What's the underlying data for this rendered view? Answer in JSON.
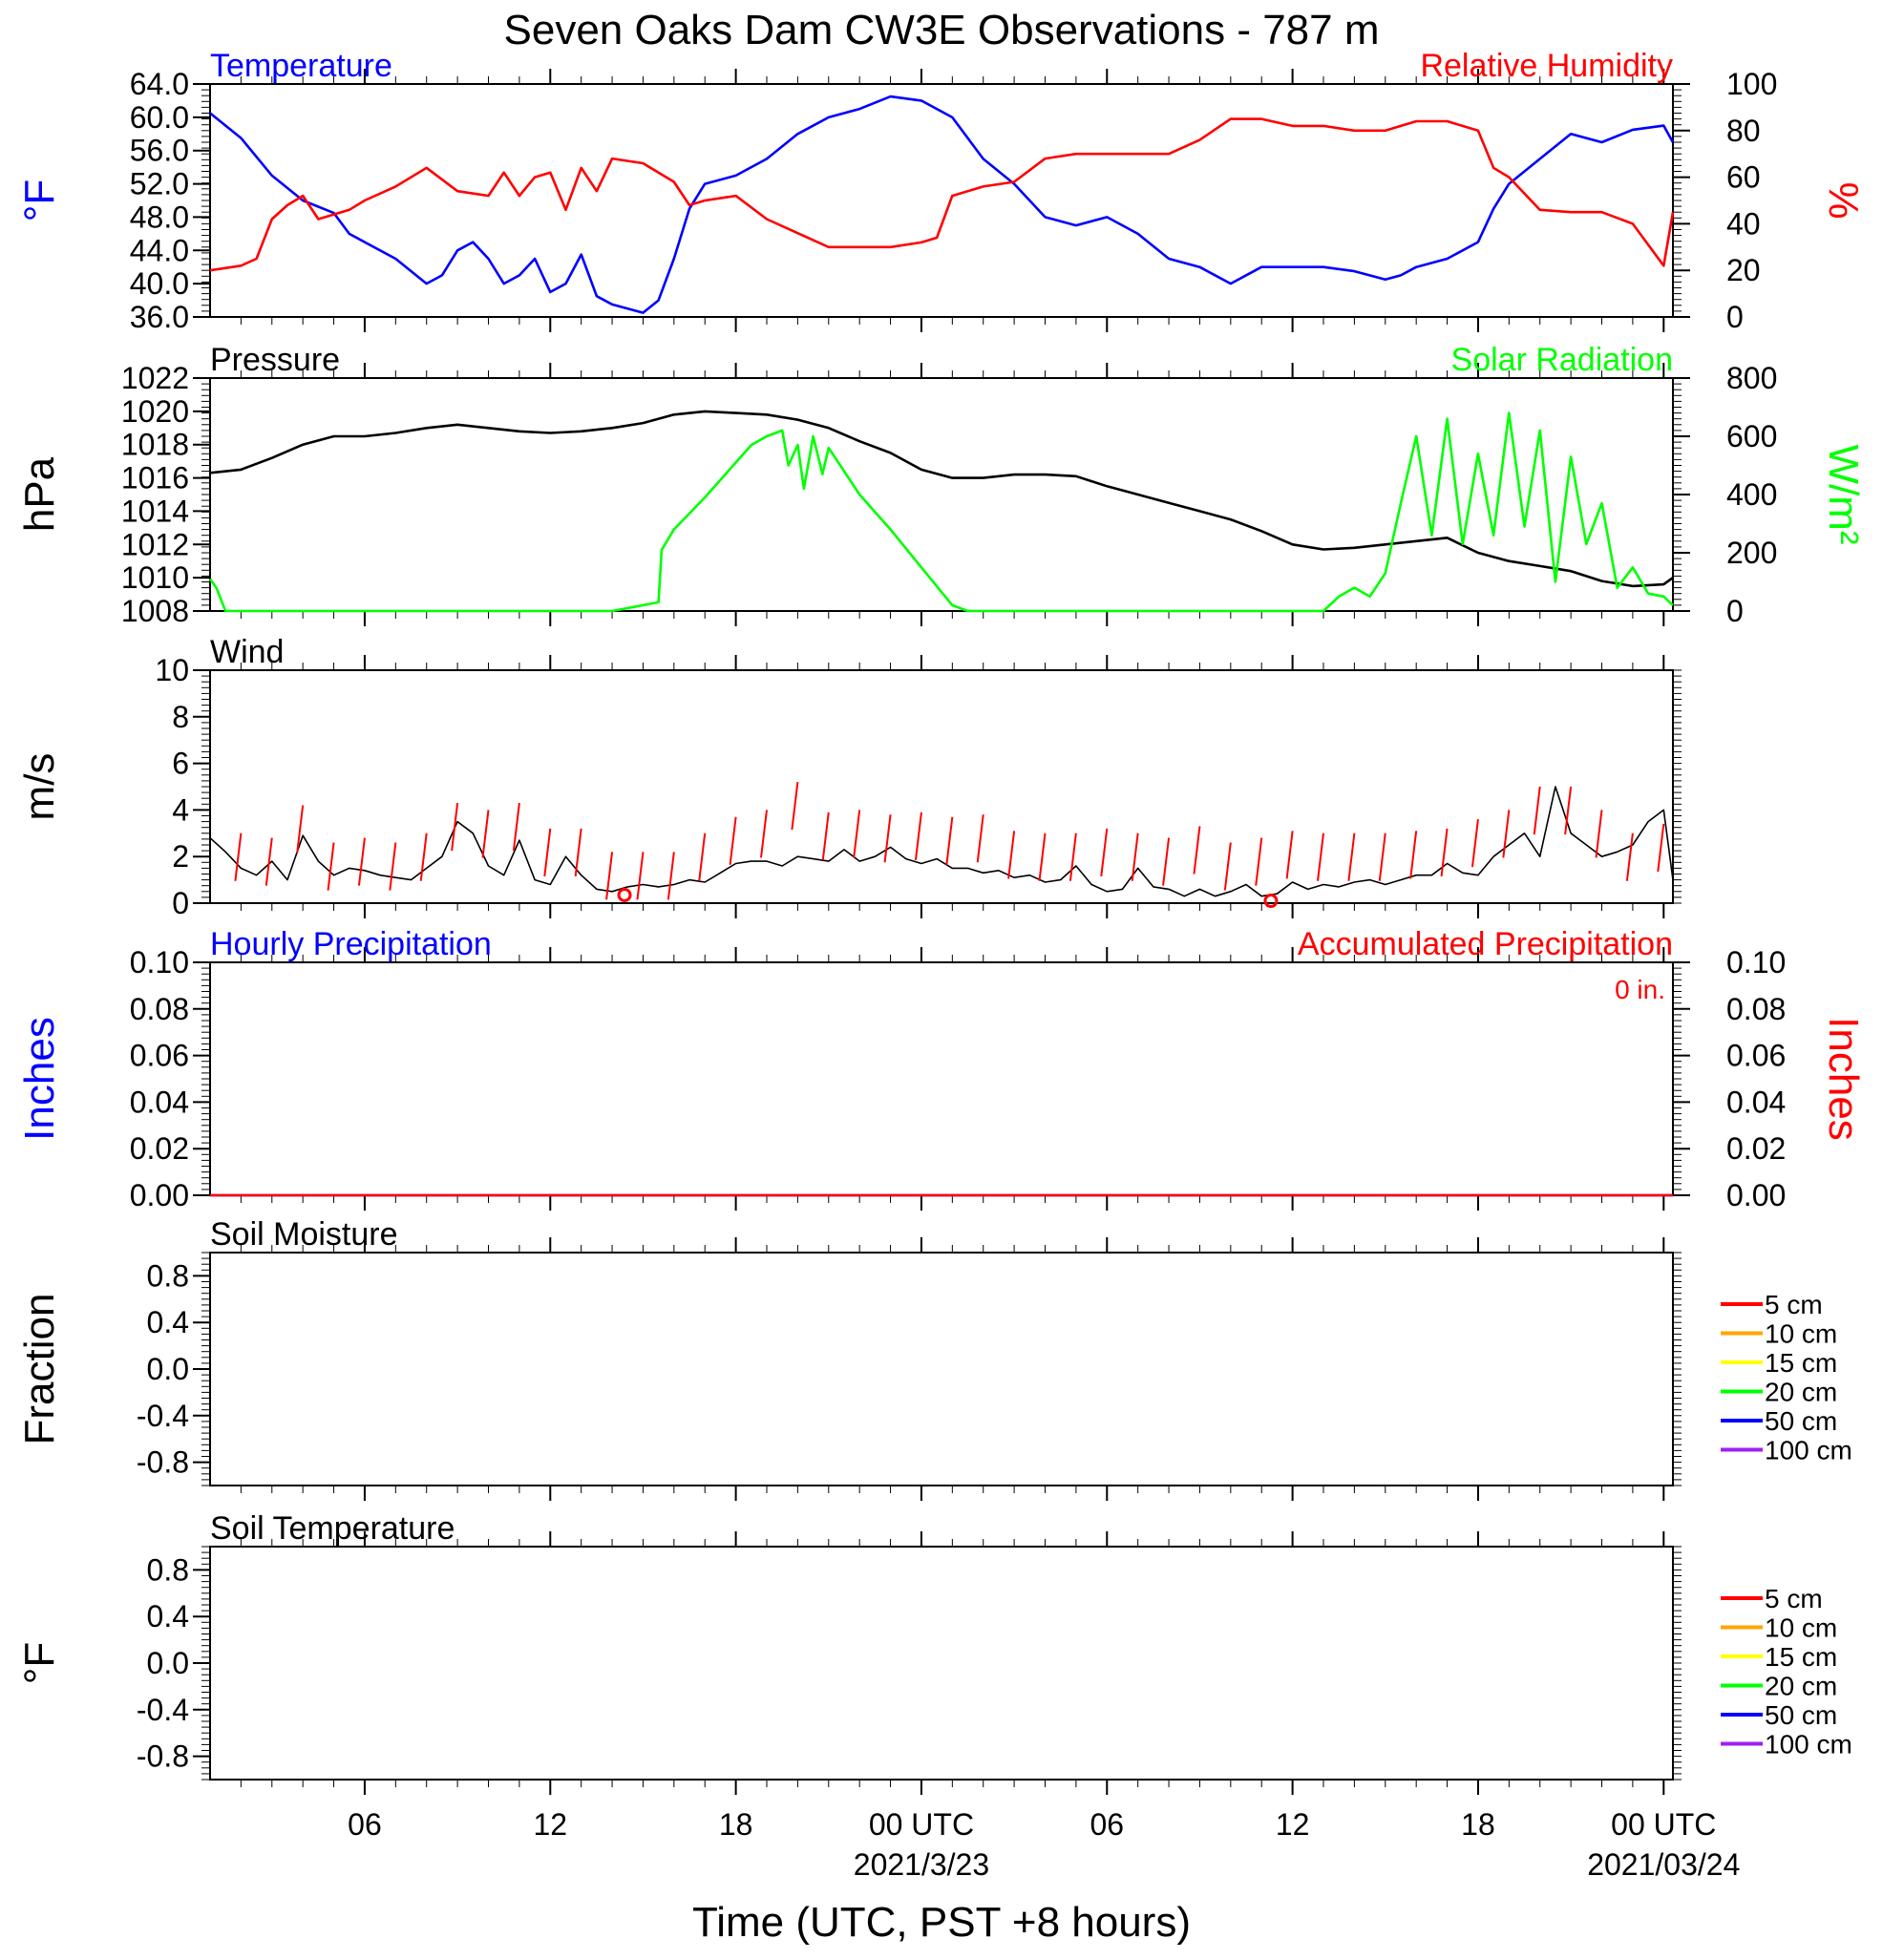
{
  "title": "Seven Oaks Dam CW3E Observations - 787 m",
  "xlabel": "Time (UTC, PST +8 hours)",
  "x_ticks": [
    {
      "hour": 6,
      "label": "06"
    },
    {
      "hour": 12,
      "label": "12"
    },
    {
      "hour": 18,
      "label": "18"
    },
    {
      "hour": 24,
      "label": "00 UTC",
      "date": "2021/3/23"
    },
    {
      "hour": 30,
      "label": "06"
    },
    {
      "hour": 36,
      "label": "12"
    },
    {
      "hour": 42,
      "label": "18"
    },
    {
      "hour": 48,
      "label": "00 UTC",
      "date": "2021/03/24"
    }
  ],
  "x_range_hours": [
    1,
    48.3
  ],
  "colors": {
    "temperature": "#0000ff",
    "humidity": "#ff0000",
    "pressure": "#000000",
    "solar": "#00ff00",
    "wind": "#000000",
    "gust": "#ff0000"
  },
  "panels": {
    "temp_rh": {
      "left_title": "Temperature",
      "right_title": "Relative Humidity",
      "left_unit": "°F",
      "right_unit": "%",
      "left_ticks": [
        "64.0",
        "60.0",
        "56.0",
        "52.0",
        "48.0",
        "44.0",
        "40.0",
        "36.0"
      ],
      "right_ticks": [
        "100",
        "80",
        "60",
        "40",
        "20",
        "0"
      ]
    },
    "pressure_solar": {
      "left_title": "Pressure",
      "right_title": "Solar Radiation",
      "left_unit": "hPa",
      "right_unit": "W/m²",
      "left_ticks": [
        "1022",
        "1020",
        "1018",
        "1016",
        "1014",
        "1012",
        "1010",
        "1008"
      ],
      "right_ticks": [
        "800",
        "600",
        "400",
        "200",
        "0"
      ]
    },
    "wind": {
      "left_title": "Wind",
      "left_unit": "m/s",
      "left_ticks": [
        "10",
        "8",
        "6",
        "4",
        "2",
        "0"
      ]
    },
    "precip": {
      "left_title": "Hourly Precipitation",
      "right_title": "Accumulated Precipitation",
      "left_unit": "Inches",
      "right_unit": "Inches",
      "total_label": "0 in.",
      "left_ticks": [
        "0.10",
        "0.08",
        "0.06",
        "0.04",
        "0.02",
        "0.00"
      ],
      "right_ticks": [
        "0.10",
        "0.08",
        "0.06",
        "0.04",
        "0.02",
        "0.00"
      ]
    },
    "soil_moisture": {
      "left_title": "Soil Moisture",
      "left_unit": "Fraction",
      "left_ticks": [
        "0.8",
        "0.4",
        "0.0",
        "-0.4",
        "-0.8"
      ]
    },
    "soil_temp": {
      "left_title": "Soil Temperature",
      "left_unit": "°F",
      "left_ticks": [
        "0.8",
        "0.4",
        "0.0",
        "-0.4",
        "-0.8"
      ]
    }
  },
  "soil_legend": [
    {
      "label": "5 cm",
      "color": "#ff0000"
    },
    {
      "label": "10 cm",
      "color": "#ffa500"
    },
    {
      "label": "15 cm",
      "color": "#ffff00"
    },
    {
      "label": "20 cm",
      "color": "#00ff00"
    },
    {
      "label": "50 cm",
      "color": "#0000ff"
    },
    {
      "label": "100 cm",
      "color": "#a020f0"
    }
  ],
  "chart_data": [
    {
      "type": "line",
      "ylim": [
        36,
        64
      ],
      "y2lim": [
        0,
        100
      ],
      "series": [
        {
          "name": "Temperature",
          "axis": "left",
          "x": [
            1,
            2,
            3,
            4,
            5,
            5.5,
            6,
            7,
            8,
            8.5,
            9,
            9.5,
            10,
            10.5,
            11,
            11.5,
            12,
            12.5,
            13,
            13.5,
            14,
            14.5,
            15,
            15.5,
            16,
            16.5,
            17,
            18,
            19,
            20,
            21,
            22,
            23,
            24,
            25,
            26,
            27,
            28,
            29,
            30,
            31,
            32,
            33,
            34,
            35,
            36,
            37,
            38,
            39,
            39.5,
            40,
            41,
            42,
            42.5,
            43,
            44,
            45,
            46,
            47,
            48,
            48.3
          ],
          "values": [
            60.5,
            57.5,
            53,
            50,
            48.5,
            46,
            45,
            43,
            40,
            41,
            44,
            45,
            43,
            40,
            41,
            43,
            39,
            40,
            43.5,
            38.5,
            37.5,
            37,
            36.5,
            38,
            43,
            49,
            52,
            53,
            55,
            58,
            60,
            61,
            62.5,
            62,
            60,
            55,
            52,
            48,
            47,
            48,
            46,
            43,
            42,
            40,
            42,
            42,
            42,
            41.5,
            40.5,
            41,
            42,
            43,
            45,
            49,
            52,
            55,
            58,
            57,
            58.5,
            59,
            57
          ]
        },
        {
          "name": "Relative Humidity",
          "axis": "right",
          "x": [
            1,
            2,
            2.5,
            3,
            3.5,
            4,
            4.5,
            5,
            5.5,
            6,
            7,
            8,
            9,
            10,
            10.5,
            11,
            11.5,
            12,
            12.5,
            13,
            13.5,
            14,
            15,
            16,
            16.5,
            17,
            18,
            19,
            20,
            21,
            22,
            23,
            24,
            24.5,
            25,
            26,
            27,
            28,
            29,
            30,
            31,
            32,
            33,
            34,
            35,
            36,
            37,
            38,
            39,
            40,
            41,
            42,
            42.5,
            43,
            44,
            45,
            46,
            47,
            48,
            48.3
          ],
          "values": [
            20,
            22,
            25,
            42,
            48,
            52,
            42,
            44,
            46,
            50,
            56,
            64,
            54,
            52,
            62,
            52,
            60,
            62,
            46,
            64,
            54,
            68,
            66,
            58,
            48,
            50,
            52,
            42,
            36,
            30,
            30,
            30,
            32,
            34,
            52,
            56,
            58,
            68,
            70,
            70,
            70,
            70,
            76,
            85,
            85,
            82,
            82,
            80,
            80,
            84,
            84,
            80,
            64,
            60,
            46,
            45,
            45,
            40,
            22,
            45
          ]
        }
      ]
    },
    {
      "type": "line",
      "ylim": [
        1008,
        1022
      ],
      "y2lim": [
        0,
        800
      ],
      "series": [
        {
          "name": "Pressure",
          "axis": "left",
          "x": [
            1,
            2,
            3,
            4,
            5,
            6,
            7,
            8,
            9,
            10,
            11,
            12,
            13,
            14,
            15,
            16,
            17,
            18,
            19,
            20,
            21,
            22,
            23,
            24,
            25,
            26,
            27,
            28,
            29,
            30,
            31,
            32,
            33,
            34,
            35,
            36,
            37,
            38,
            39,
            40,
            41,
            42,
            43,
            44,
            45,
            46,
            47,
            48,
            48.3
          ],
          "values": [
            1016.3,
            1016.5,
            1017.2,
            1018,
            1018.5,
            1018.5,
            1018.7,
            1019,
            1019.2,
            1019,
            1018.8,
            1018.7,
            1018.8,
            1019,
            1019.3,
            1019.8,
            1020,
            1019.9,
            1019.8,
            1019.5,
            1019,
            1018.2,
            1017.5,
            1016.5,
            1016,
            1016,
            1016.2,
            1016.2,
            1016.1,
            1015.5,
            1015,
            1014.5,
            1014,
            1013.5,
            1012.8,
            1012,
            1011.7,
            1011.8,
            1012,
            1012.2,
            1012.4,
            1011.5,
            1011,
            1010.7,
            1010.4,
            1009.8,
            1009.5,
            1009.6,
            1010
          ]
        },
        {
          "name": "Solar Radiation",
          "axis": "right",
          "x": [
            1,
            1.2,
            1.5,
            14,
            15.5,
            15.6,
            16,
            17,
            18,
            18.5,
            19,
            19.5,
            19.7,
            20,
            20.2,
            20.5,
            20.8,
            21,
            22,
            23,
            24,
            25,
            25.5,
            35,
            37,
            37.5,
            38,
            38.5,
            39,
            39.5,
            40,
            40.5,
            41,
            41.5,
            42,
            42.5,
            43,
            43.5,
            44,
            44.5,
            45,
            45.5,
            46,
            46.5,
            47,
            47.5,
            48,
            48.3
          ],
          "values": [
            110,
            80,
            0,
            0,
            30,
            210,
            280,
            390,
            510,
            570,
            600,
            620,
            500,
            570,
            420,
            600,
            470,
            560,
            400,
            280,
            150,
            20,
            0,
            0,
            0,
            50,
            80,
            50,
            130,
            370,
            600,
            260,
            660,
            230,
            540,
            260,
            680,
            290,
            620,
            100,
            530,
            230,
            370,
            80,
            150,
            60,
            50,
            20
          ]
        }
      ]
    },
    {
      "type": "line",
      "ylim": [
        0,
        10
      ],
      "series": [
        {
          "name": "Wind",
          "axis": "left",
          "x": [
            1,
            1.5,
            2,
            2.5,
            3,
            3.5,
            4,
            4.5,
            5,
            5.5,
            6,
            6.5,
            7,
            7.5,
            8,
            8.5,
            9,
            9.5,
            10,
            10.5,
            11,
            11.5,
            12,
            12.5,
            13,
            13.5,
            14,
            14.5,
            15,
            15.5,
            16,
            16.5,
            17,
            17.5,
            18,
            18.5,
            19,
            19.5,
            20,
            20.5,
            21,
            21.5,
            22,
            22.5,
            23,
            23.5,
            24,
            24.5,
            25,
            25.5,
            26,
            26.5,
            27,
            27.5,
            28,
            28.5,
            29,
            29.5,
            30,
            30.5,
            31,
            31.5,
            32,
            32.5,
            33,
            33.5,
            34,
            34.5,
            35,
            35.5,
            36,
            36.5,
            37,
            37.5,
            38,
            38.5,
            39,
            39.5,
            40,
            40.5,
            41,
            41.5,
            42,
            42.5,
            43,
            43.5,
            44,
            44.5,
            45,
            45.5,
            46,
            46.5,
            47,
            47.5,
            48,
            48.3
          ],
          "values": [
            2.8,
            2.2,
            1.5,
            1.2,
            1.8,
            1.0,
            2.9,
            1.8,
            1.2,
            1.5,
            1.4,
            1.2,
            1.1,
            1.0,
            1.5,
            2.0,
            3.5,
            3.0,
            1.6,
            1.2,
            2.7,
            1.0,
            0.8,
            2.0,
            1.2,
            0.6,
            0.5,
            0.7,
            0.8,
            0.7,
            0.8,
            1.0,
            0.9,
            1.3,
            1.7,
            1.8,
            1.8,
            1.6,
            2.0,
            1.9,
            1.8,
            2.3,
            1.8,
            2.0,
            2.4,
            1.9,
            1.7,
            1.9,
            1.5,
            1.5,
            1.3,
            1.4,
            1.1,
            1.2,
            0.9,
            1.0,
            1.6,
            0.8,
            0.5,
            0.6,
            1.5,
            0.7,
            0.6,
            0.3,
            0.6,
            0.3,
            0.5,
            0.8,
            0.3,
            0.4,
            0.9,
            0.6,
            0.8,
            0.7,
            0.9,
            1.0,
            0.8,
            1.0,
            1.2,
            1.2,
            1.7,
            1.3,
            1.2,
            2.0,
            2.5,
            3.0,
            2.0,
            5.0,
            3.0,
            2.5,
            2.0,
            2.2,
            2.5,
            3.5,
            4.0,
            1.0
          ]
        },
        {
          "name": "Gust",
          "axis": "left",
          "x": [
            2,
            3,
            4,
            5,
            6,
            7,
            8,
            9,
            10,
            11,
            12,
            13,
            14,
            15,
            16,
            17,
            18,
            19,
            20,
            21,
            22,
            23,
            24,
            25,
            26,
            27,
            28,
            29,
            30,
            31,
            32,
            33,
            34,
            35,
            36,
            37,
            38,
            39,
            40,
            41,
            42,
            43,
            44,
            45,
            46,
            47,
            48
          ],
          "values": [
            3.0,
            2.8,
            4.2,
            2.6,
            2.8,
            2.6,
            3.0,
            4.3,
            4.0,
            4.3,
            3.2,
            3.2,
            2.2,
            2.2,
            2.2,
            3.0,
            3.7,
            4.0,
            5.2,
            3.9,
            4.0,
            3.8,
            3.9,
            3.7,
            3.8,
            3.1,
            3.0,
            3.0,
            3.2,
            3.0,
            2.8,
            3.3,
            2.6,
            2.8,
            3.1,
            3.0,
            3.0,
            3.0,
            3.1,
            3.2,
            3.6,
            4.0,
            5.0,
            5.0,
            4.0,
            3.0,
            3.4
          ]
        }
      ]
    },
    {
      "type": "line",
      "ylim": [
        0,
        0.1
      ],
      "y2lim": [
        0,
        0.1
      ],
      "series": [
        {
          "name": "Hourly Precipitation",
          "axis": "left",
          "x": [
            1,
            48.3
          ],
          "values": [
            0,
            0
          ]
        },
        {
          "name": "Accumulated Precipitation",
          "axis": "right",
          "x": [
            1,
            48.3
          ],
          "values": [
            0,
            0
          ]
        }
      ]
    },
    {
      "type": "line",
      "ylim": [
        -1,
        1
      ],
      "series": []
    },
    {
      "type": "line",
      "ylim": [
        -1,
        1
      ],
      "series": []
    }
  ]
}
